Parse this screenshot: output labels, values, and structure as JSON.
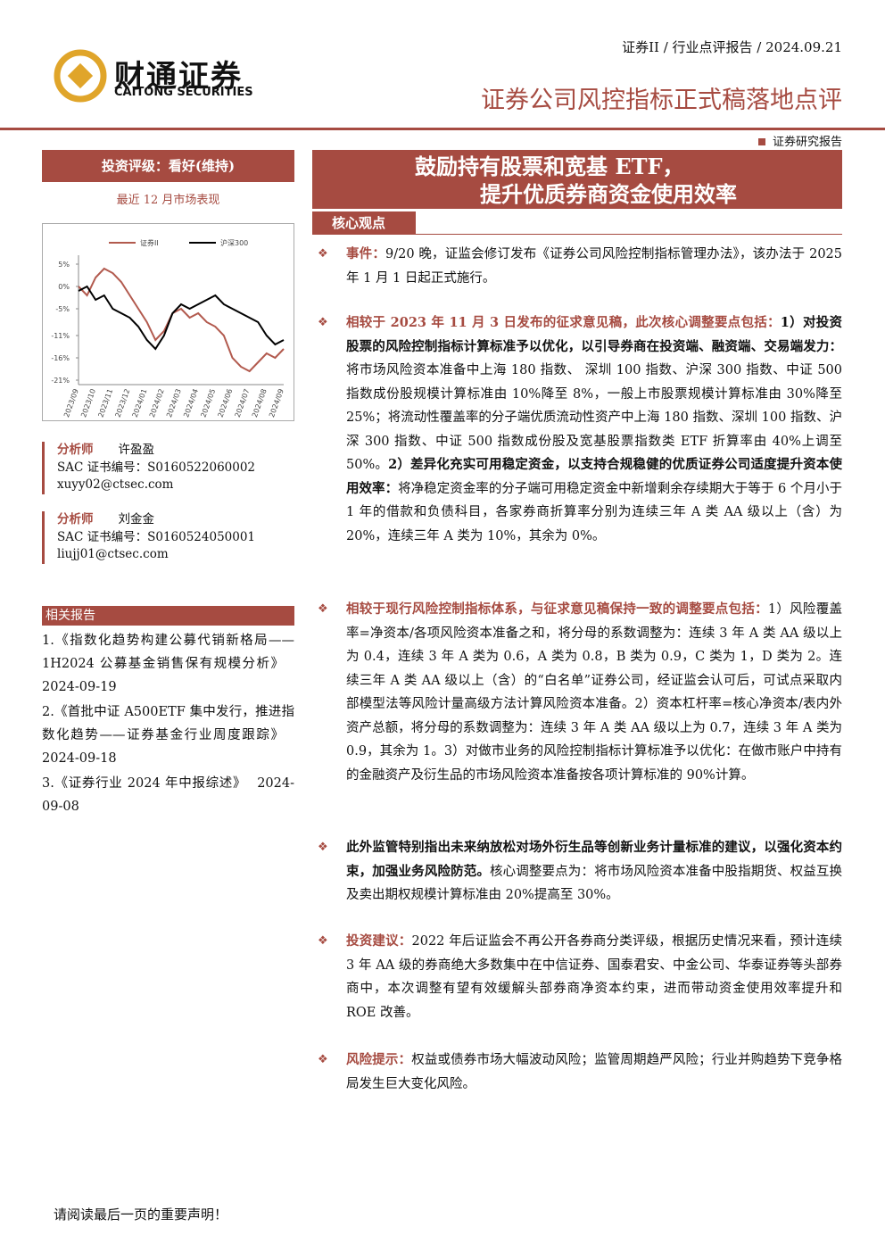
{
  "header": {
    "logo_name": "财通证券",
    "logo_en": "CAITONG SECURITIES",
    "breadcrumb": "证券II / 行业点评报告 / 2024.09.21",
    "report_title": "证券公司风控指标正式稿落地点评",
    "report_type": "证券研究报告"
  },
  "rating": "投资评级：看好(维持)",
  "chart_caption": "最近 12 月市场表现",
  "chart_data": {
    "type": "line",
    "categories": [
      "2023/09",
      null,
      "2023/10",
      null,
      "2023/11",
      null,
      "2023/12",
      null,
      "2024/01",
      null,
      "2024/02",
      null,
      "2024/03",
      null,
      "2024/04",
      null,
      "2024/05",
      null,
      "2024/06",
      null,
      "2024/07",
      null,
      "2024/08",
      null,
      "2024/09"
    ],
    "series": [
      {
        "name": "证券II",
        "color": "#b25a4e",
        "values": [
          0,
          -2,
          2,
          4,
          3,
          1,
          -2,
          -5,
          -8,
          -12,
          -10,
          -6,
          -5,
          -7,
          -6,
          -8,
          -9,
          -11,
          -16,
          -18,
          -19,
          -17,
          -15,
          -16,
          -14
        ]
      },
      {
        "name": "沪深300",
        "color": "#000000",
        "values": [
          -1,
          0,
          -3,
          -2,
          -5,
          -6,
          -7,
          -9,
          -12,
          -14,
          -11,
          -6,
          -4,
          -5,
          -4,
          -3,
          -2,
          -4,
          -5,
          -6,
          -7,
          -8,
          -11,
          -13,
          -12
        ]
      }
    ],
    "ylim": [
      -22,
      7
    ],
    "yticks": [
      {
        "value": 5,
        "label": "5%"
      },
      {
        "value": 0,
        "label": "0%"
      },
      {
        "value": -5,
        "label": "-5%"
      },
      {
        "value": -11,
        "label": "-11%"
      },
      {
        "value": -16,
        "label": "-16%"
      },
      {
        "value": -21,
        "label": "-21%"
      }
    ]
  },
  "analysts": [
    {
      "role": "分析师",
      "name": "许盈盈",
      "sac": "SAC 证书编号：S0160522060002",
      "email": "xuyy02@ctsec.com"
    },
    {
      "role": "分析师",
      "name": "刘金金",
      "sac": "SAC 证书编号：S0160524050001",
      "email": "liujj01@ctsec.com"
    }
  ],
  "related": {
    "title": "相关报告",
    "items": [
      {
        "text": "1.《指数化趋势构建公募代销新格局——1H2024 公募基金销售保有规模分析》",
        "date": "2024-09-19"
      },
      {
        "text": "2.《首批中证 A500ETF 集中发行，推进指数化趋势——证券基金行业周度跟踪》",
        "date": "2024-09-18"
      },
      {
        "text": "3.《证券行业 2024 年中报综述》",
        "date": "2024-09-08"
      }
    ]
  },
  "main_title": [
    "鼓励持有股票和宽基 ETF，",
    "提升优质券商资金使用效率"
  ],
  "section": "核心观点",
  "paragraphs": [
    [
      {
        "text": "事件：",
        "style": "red"
      },
      {
        "text": "9/20 晚，证监会修订发布《证券公司风险控制指标管理办法》，该办法于 2025 年 1 月 1 日起正式施行。",
        "style": "normal"
      }
    ],
    [
      {
        "text": "相较于 2023 年 11 月 3 日发布的征求意见稿，此次核心调整要点包括：",
        "style": "red"
      },
      {
        "text": "1）对投资股票的风险控制指标计算标准予以优化，以引导券商在投资端、融资端、交易端发力：",
        "style": "bold"
      },
      {
        "text": "将市场风险资本准备中上海 180 指数、 深圳 100 指数、沪深 300 指数、中证 500 指数成份股规模计算标准由 10%降至 8%，一般上市股票规模计算标准由 30%降至 25%；将流动性覆盖率的分子端优质流动性资产中上海 180 指数、深圳 100 指数、沪深 300 指数、中证 500 指数成份股及宽基股票指数类 ETF 折算率由 40%上调至 50%。",
        "style": "normal"
      },
      {
        "text": "2）差异化充实可用稳定资金，以支持合规稳健的优质证券公司适度提升资本使用效率：",
        "style": "bold"
      },
      {
        "text": "将净稳定资金率的分子端可用稳定资金中新增剩余存续期大于等于 6 个月小于 1 年的借款和负债科目，各家券商折算率分别为连续三年 A 类 AA 级以上（含）为 20%，连续三年 A 类为 10%，其余为 0%。",
        "style": "normal"
      }
    ],
    [
      {
        "text": "相较于现行风险控制指标体系，与征求意见稿保持一致的调整要点包括：",
        "style": "red"
      },
      {
        "text": "1）风险覆盖率=净资本/各项风险资本准备之和，将分母的系数调整为：连续 3 年 A 类 AA 级以上为 0.4，连续 3 年 A 类为 0.6，A 类为 0.8，B 类为 0.9，C 类为 1，D 类为 2。连续三年 A 类 AA 级以上（含）的“白名单”证券公司，经证监会认可后，可试点采取内部模型法等风险计量高级方法计算风险资本准备。2）资本杠杆率=核心净资本/表内外资产总额，将分母的系数调整为：连续 3 年 A 类 AA 级以上为 0.7，连续 3 年 A 类为 0.9，其余为 1。3）对做市业务的风险控制指标计算标准予以优化：在做市账户中持有的金融资产及衍生品的市场风险资本准备按各项计算标准的 90%计算。",
        "style": "normal"
      }
    ],
    [
      {
        "text": "此外监管特别指出未来纳放松对场外衍生品等创新业务计量标准的建议，以强化资本约束，加强业务风险防范。",
        "style": "bold"
      },
      {
        "text": "核心调整要点为：将市场风险资本准备中股指期货、权益互换及卖出期权规模计算标准由 20%提高至 30%。",
        "style": "normal"
      }
    ],
    [
      {
        "text": "投资建议：",
        "style": "red"
      },
      {
        "text": "2022 年后证监会不再公开各券商分类评级，根据历史情况来看，预计连续 3 年 AA 级的券商绝大多数集中在中信证券、国泰君安、中金公司、华泰证券等头部券商中，本次调整有望有效缓解头部券商净资本约束，进而带动资金使用效率提升和 ROE 改善。",
        "style": "normal"
      }
    ],
    [
      {
        "text": "风险提示：",
        "style": "red"
      },
      {
        "text": "权益或债券市场大幅波动风险；监管周期趋严风险；行业并购趋势下竞争格局发生巨大变化风险。",
        "style": "normal"
      }
    ]
  ],
  "footer": "请阅读最后一页的重要声明！"
}
